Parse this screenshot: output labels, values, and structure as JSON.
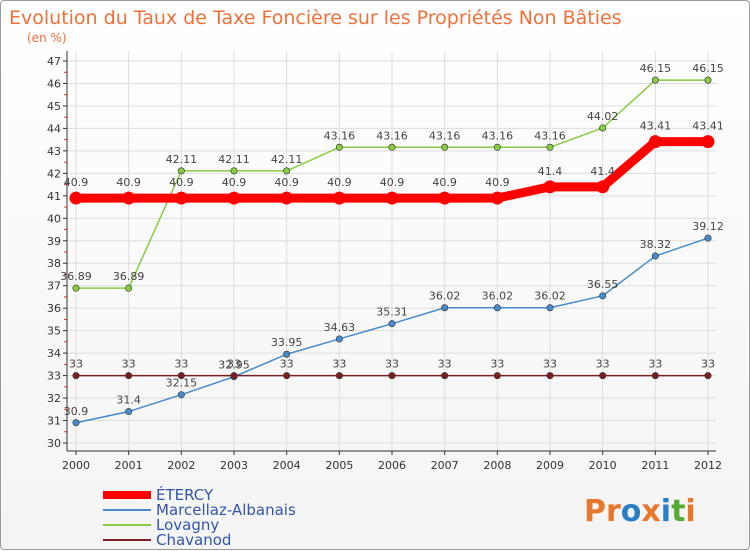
{
  "chart_data": {
    "type": "line",
    "title": "Evolution du Taux de Taxe Foncière sur les Propriétés Non Bâties",
    "subtitle": "(en %)",
    "xlabel": "",
    "ylabel": "",
    "ylim": [
      30,
      47
    ],
    "categories": [
      "2000",
      "2001",
      "2002",
      "2003",
      "2004",
      "2005",
      "2006",
      "2007",
      "2008",
      "2009",
      "2010",
      "2011",
      "2012"
    ],
    "y_ticks": [
      30,
      31,
      32,
      33,
      34,
      35,
      36,
      37,
      38,
      39,
      40,
      41,
      42,
      43,
      44,
      45,
      46,
      47
    ],
    "series": [
      {
        "name": "ÉTERCY",
        "color": "#ff0000",
        "values": [
          40.9,
          40.9,
          40.9,
          40.9,
          40.9,
          40.9,
          40.9,
          40.9,
          40.9,
          41.4,
          41.4,
          43.41,
          43.41
        ],
        "labels": [
          "40.9",
          "40.9",
          "40.9",
          "40.9",
          "40.9",
          "40.9",
          "40.9",
          "40.9",
          "40.9",
          "41.4",
          "41.4",
          "43.41",
          "43.41"
        ]
      },
      {
        "name": "Marcellaz-Albanais",
        "color": "#4a8ac8",
        "values": [
          30.9,
          31.4,
          32.15,
          32.95,
          33.95,
          34.63,
          35.31,
          36.02,
          36.02,
          36.02,
          36.55,
          38.32,
          39.12
        ],
        "labels": [
          "30.9",
          "31.4",
          "32.15",
          "32.95",
          "33.95",
          "34.63",
          "35.31",
          "36.02",
          "36.02",
          "36.02",
          "36.55",
          "38.32",
          "39.12"
        ]
      },
      {
        "name": "Lovagny",
        "color": "#88cc44",
        "values": [
          36.89,
          36.89,
          42.11,
          42.11,
          42.11,
          43.16,
          43.16,
          43.16,
          43.16,
          43.16,
          44.02,
          46.15,
          46.15
        ],
        "labels": [
          "36.89",
          "36.89",
          "42.11",
          "42.11",
          "42.11",
          "43.16",
          "43.16",
          "43.16",
          "43.16",
          "43.16",
          "44.02",
          "46.15",
          "46.15"
        ]
      },
      {
        "name": "Chavanod",
        "color": "#7a2020",
        "values": [
          33,
          33,
          33,
          33,
          33,
          33,
          33,
          33,
          33,
          33,
          33,
          33,
          33
        ],
        "labels": [
          "33",
          "33",
          "33",
          "33",
          "33",
          "33",
          "33",
          "33",
          "33",
          "33",
          "33",
          "33",
          "33"
        ]
      }
    ],
    "legend_position": "bottom-left",
    "grid": true
  },
  "logo": {
    "parts": [
      "Pr",
      "o",
      "x",
      "i",
      "t",
      "i"
    ],
    "colors": [
      "#e8772e",
      "#2a7fc4",
      "#e8772e",
      "#2a7fc4",
      "#55aa33",
      "#e8772e"
    ]
  }
}
